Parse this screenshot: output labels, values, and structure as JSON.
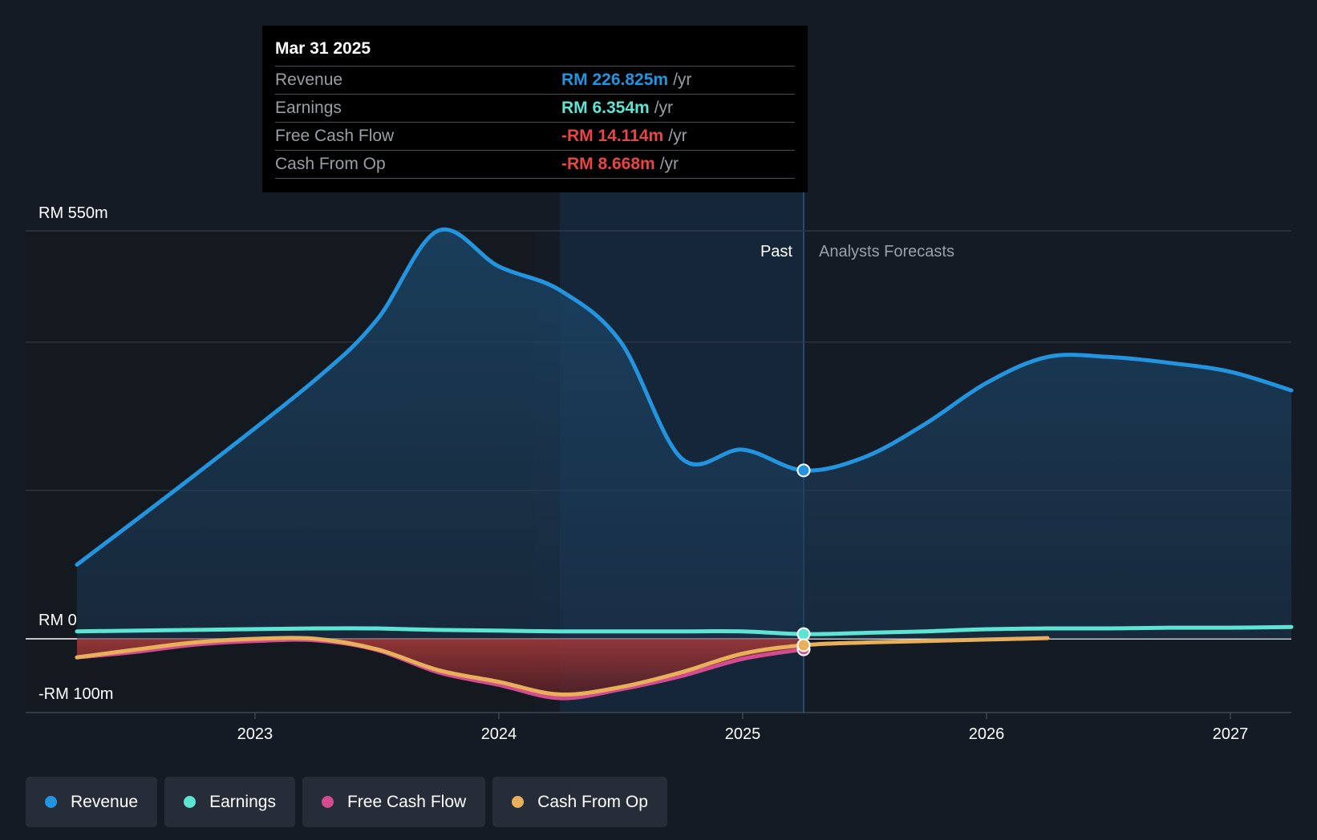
{
  "chart_data": {
    "type": "line",
    "title": "",
    "y_axis": {
      "top_label": "RM 550m",
      "zero_label": "RM 0",
      "bottom_label": "-RM 100m",
      "ylim": [
        -100,
        550
      ]
    },
    "x_axis": {
      "tick_labels": [
        "2023",
        "2024",
        "2025",
        "2026",
        "2027"
      ],
      "xlim": [
        2022.27,
        2027.25
      ]
    },
    "divider": {
      "past_label": "Past",
      "forecast_label": "Analysts Forecasts",
      "x": 2025.25
    },
    "series": [
      {
        "name": "Revenue",
        "color": "#2394df",
        "points": [
          [
            2022.27,
            100
          ],
          [
            2022.75,
            220
          ],
          [
            2023.25,
            350
          ],
          [
            2023.5,
            430
          ],
          [
            2023.75,
            550
          ],
          [
            2024.0,
            502
          ],
          [
            2024.25,
            470
          ],
          [
            2024.5,
            400
          ],
          [
            2024.75,
            243
          ],
          [
            2025.0,
            255
          ],
          [
            2025.25,
            227
          ]
        ],
        "forecast": [
          [
            2025.25,
            227
          ],
          [
            2025.5,
            245
          ],
          [
            2025.75,
            290
          ],
          [
            2026.0,
            345
          ],
          [
            2026.25,
            380
          ],
          [
            2026.5,
            380
          ],
          [
            2026.75,
            372
          ],
          [
            2027.0,
            360
          ],
          [
            2027.25,
            335
          ]
        ]
      },
      {
        "name": "Earnings",
        "color": "#5ee4d3",
        "points": [
          [
            2022.27,
            10
          ],
          [
            2022.75,
            12
          ],
          [
            2023.25,
            14
          ],
          [
            2023.5,
            14
          ],
          [
            2023.75,
            12
          ],
          [
            2024.0,
            11
          ],
          [
            2024.25,
            10
          ],
          [
            2024.5,
            10
          ],
          [
            2024.75,
            10
          ],
          [
            2025.0,
            10
          ],
          [
            2025.25,
            6.354
          ]
        ],
        "forecast": [
          [
            2025.25,
            6.354
          ],
          [
            2025.5,
            8
          ],
          [
            2025.75,
            10
          ],
          [
            2026.0,
            13
          ],
          [
            2026.25,
            14
          ],
          [
            2026.5,
            14
          ],
          [
            2026.75,
            15
          ],
          [
            2027.0,
            15
          ],
          [
            2027.25,
            16
          ]
        ]
      },
      {
        "name": "Free Cash Flow",
        "color": "#d44b8f",
        "points": [
          [
            2022.27,
            -25
          ],
          [
            2022.5,
            -18
          ],
          [
            2022.75,
            -8
          ],
          [
            2023.0,
            -3
          ],
          [
            2023.25,
            -2
          ],
          [
            2023.5,
            -15
          ],
          [
            2023.75,
            -45
          ],
          [
            2024.0,
            -62
          ],
          [
            2024.25,
            -80
          ],
          [
            2024.5,
            -68
          ],
          [
            2024.75,
            -50
          ],
          [
            2025.0,
            -27
          ],
          [
            2025.25,
            -14.114
          ]
        ],
        "forecast": []
      },
      {
        "name": "Cash From Op",
        "color": "#e8b05a",
        "points": [
          [
            2022.27,
            -25
          ],
          [
            2022.5,
            -15
          ],
          [
            2022.75,
            -5
          ],
          [
            2023.0,
            0
          ],
          [
            2023.25,
            0
          ],
          [
            2023.5,
            -14
          ],
          [
            2023.75,
            -42
          ],
          [
            2024.0,
            -58
          ],
          [
            2024.25,
            -75
          ],
          [
            2024.5,
            -65
          ],
          [
            2024.75,
            -45
          ],
          [
            2025.0,
            -20
          ],
          [
            2025.25,
            -8.668
          ]
        ],
        "forecast": [
          [
            2025.25,
            -8.668
          ],
          [
            2025.5,
            -5
          ],
          [
            2025.75,
            -3
          ],
          [
            2026.0,
            -1
          ],
          [
            2026.25,
            1
          ]
        ]
      }
    ]
  },
  "tooltip": {
    "date": "Mar 31 2025",
    "rows": [
      {
        "name": "Revenue",
        "value": "RM 226.825m",
        "unit": "/yr",
        "color": "#2394df"
      },
      {
        "name": "Earnings",
        "value": "RM 6.354m",
        "unit": "/yr",
        "color": "#5ee4d3"
      },
      {
        "name": "Free Cash Flow",
        "value": "-RM 14.114m",
        "unit": "/yr",
        "color": "#e84545"
      },
      {
        "name": "Cash From Op",
        "value": "-RM 8.668m",
        "unit": "/yr",
        "color": "#e84545"
      }
    ]
  },
  "legend": [
    {
      "label": "Revenue",
      "color": "#2394df"
    },
    {
      "label": "Earnings",
      "color": "#5ee4d3"
    },
    {
      "label": "Free Cash Flow",
      "color": "#d44b8f"
    },
    {
      "label": "Cash From Op",
      "color": "#e8b05a"
    }
  ]
}
